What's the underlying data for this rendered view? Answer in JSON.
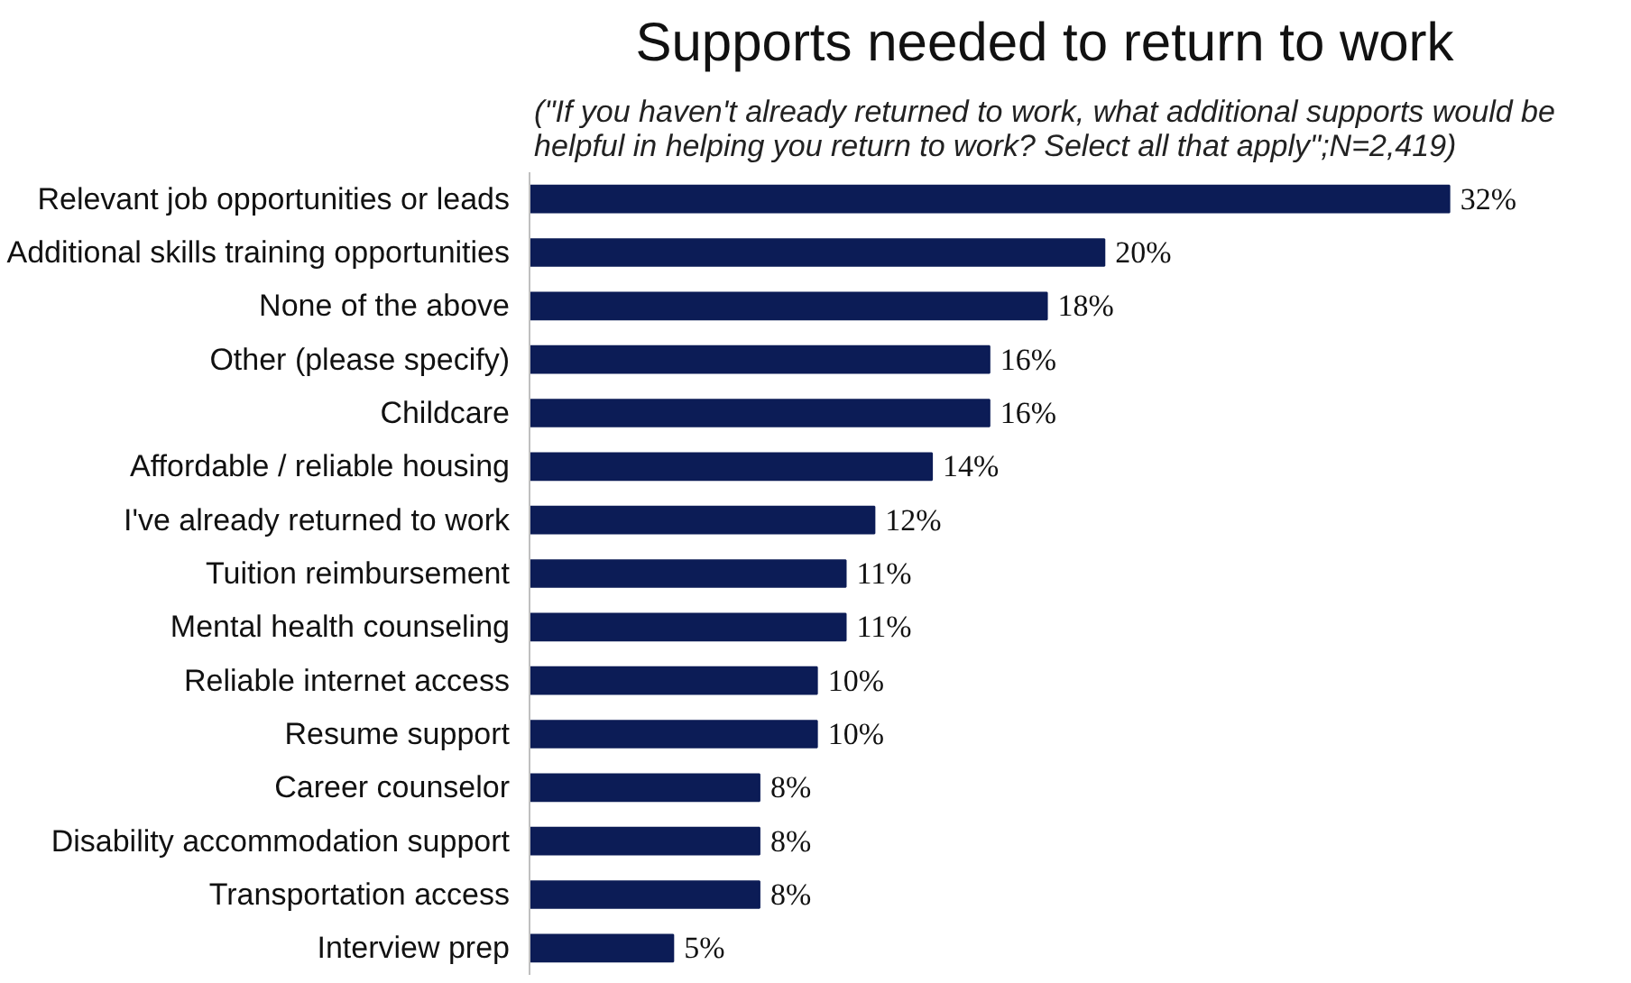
{
  "chart_data": {
    "type": "bar",
    "orientation": "horizontal",
    "title": "Supports needed to return to work",
    "subtitle": "(\"If you haven't already returned to work, what additional supports would be helpful in helping you return to work? Select all that apply\";N=2,419)",
    "categories": [
      "Relevant job opportunities or leads",
      "Additional skills training opportunities",
      "None of the above",
      "Other (please specify)",
      "Childcare",
      "Affordable / reliable housing",
      "I've already returned to work",
      "Tuition reimbursement",
      "Mental health counseling",
      "Reliable internet access",
      "Resume support",
      "Career counselor",
      "Disability accommodation support",
      "Transportation access",
      "Interview prep"
    ],
    "values": [
      32,
      20,
      18,
      16,
      16,
      14,
      12,
      11,
      11,
      10,
      10,
      8,
      8,
      8,
      5
    ],
    "value_labels": [
      "32%",
      "20%",
      "18%",
      "16%",
      "16%",
      "14%",
      "12%",
      "11%",
      "11%",
      "10%",
      "10%",
      "8%",
      "8%",
      "8%",
      "5%"
    ],
    "color": "#0c1c56"
  }
}
